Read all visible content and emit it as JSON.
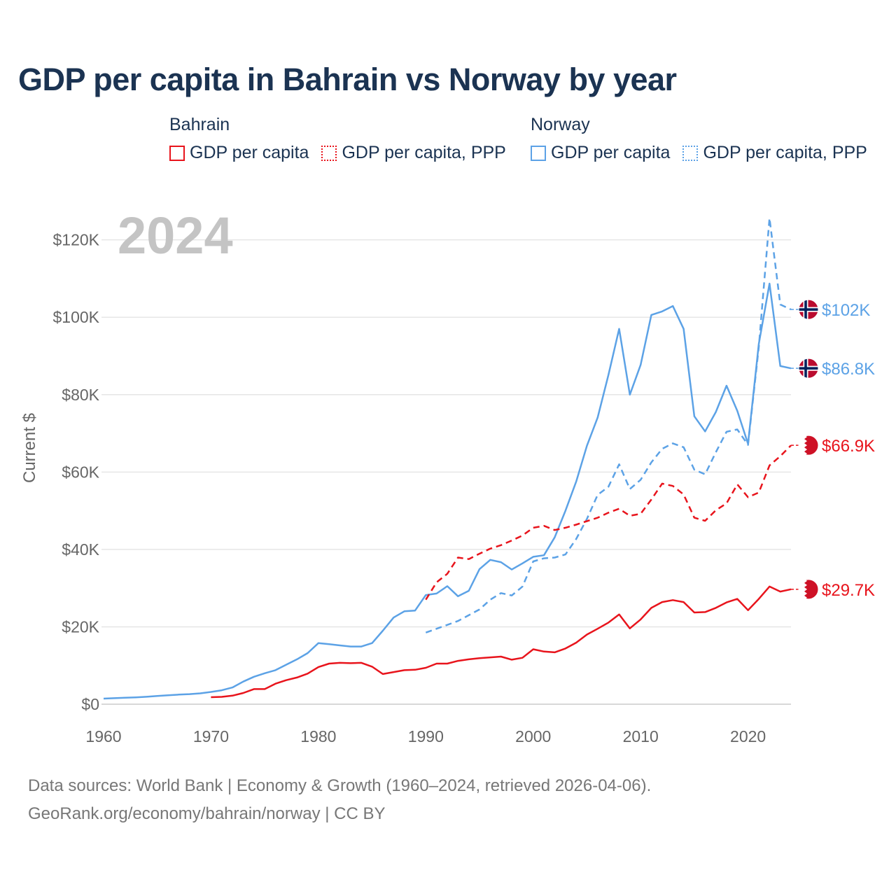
{
  "title": "GDP per capita in Bahrain vs Norway by year",
  "legend": {
    "bahrain": {
      "name": "Bahrain",
      "items": [
        "GDP per capita",
        "GDP per capita, PPP"
      ]
    },
    "norway": {
      "name": "Norway",
      "items": [
        "GDP per capita",
        "GDP per capita, PPP"
      ]
    }
  },
  "colors": {
    "bahrain": "#e8141c",
    "norway": "#5ca2e6",
    "title": "#1b3352",
    "axis": "#666666",
    "year_watermark": "#c4c4c4"
  },
  "footer": {
    "line1": "Data sources: World Bank | Economy & Growth (1960–2024, retrieved 2026-04-06).",
    "line2": "GeoRank.org/economy/bahrain/norway | CC BY"
  },
  "chart_data": {
    "type": "line",
    "year_label": "2024",
    "ylabel": "Current $",
    "xlim": [
      1960,
      2024
    ],
    "ylim": [
      0,
      125000
    ],
    "x_ticks": [
      1960,
      1970,
      1980,
      1990,
      2000,
      2010,
      2020
    ],
    "x_tick_labels": [
      "1960",
      "1970",
      "1980",
      "1990",
      "2000",
      "2010",
      "2020"
    ],
    "y_ticks": [
      0,
      20000,
      40000,
      60000,
      80000,
      100000,
      120000
    ],
    "y_tick_labels": [
      "$0",
      "$20K",
      "$40K",
      "$60K",
      "$80K",
      "$100K",
      "$120K"
    ],
    "grid": true,
    "series": [
      {
        "name": "Norway GDP per capita",
        "country": "norway",
        "dash": "solid",
        "end_label": "$86.8K",
        "flag": "norway-flag-icon",
        "x": [
          1960,
          1961,
          1962,
          1963,
          1964,
          1965,
          1966,
          1967,
          1968,
          1969,
          1970,
          1971,
          1972,
          1973,
          1974,
          1975,
          1976,
          1977,
          1978,
          1979,
          1980,
          1981,
          1982,
          1983,
          1984,
          1985,
          1986,
          1987,
          1988,
          1989,
          1990,
          1991,
          1992,
          1993,
          1994,
          1995,
          1996,
          1997,
          1998,
          1999,
          2000,
          2001,
          2002,
          2003,
          2004,
          2005,
          2006,
          2007,
          2008,
          2009,
          2010,
          2011,
          2012,
          2013,
          2014,
          2015,
          2016,
          2017,
          2018,
          2019,
          2020,
          2021,
          2022,
          2023,
          2024
        ],
        "values": [
          1440,
          1560,
          1670,
          1780,
          1920,
          2110,
          2290,
          2470,
          2600,
          2800,
          3170,
          3600,
          4320,
          5850,
          7100,
          8000,
          8800,
          10200,
          11600,
          13200,
          15800,
          15500,
          15200,
          14900,
          14900,
          15800,
          19000,
          22400,
          24000,
          24200,
          28200,
          28600,
          30500,
          27900,
          29300,
          34900,
          37300,
          36700,
          34800,
          36400,
          38100,
          38500,
          43100,
          50000,
          57500,
          66800,
          74100,
          85100,
          97000,
          80000,
          87700,
          100600,
          101500,
          102900,
          97000,
          74400,
          70500,
          75500,
          82300,
          75800,
          67300,
          93100,
          108700,
          87400,
          86800
        ]
      },
      {
        "name": "Norway GDP per capita, PPP",
        "country": "norway",
        "dash": "dashed",
        "end_label": "$102K",
        "flag": "norway-flag-icon",
        "x": [
          1990,
          1991,
          1992,
          1993,
          1994,
          1995,
          1996,
          1997,
          1998,
          1999,
          2000,
          2001,
          2002,
          2003,
          2004,
          2005,
          2006,
          2007,
          2008,
          2009,
          2010,
          2011,
          2012,
          2013,
          2014,
          2015,
          2016,
          2017,
          2018,
          2019,
          2020,
          2021,
          2022,
          2023,
          2024
        ],
        "values": [
          18500,
          19500,
          20500,
          21500,
          23000,
          24500,
          27000,
          28700,
          28100,
          30400,
          36900,
          37700,
          37900,
          38700,
          42700,
          47900,
          54100,
          56200,
          62000,
          55600,
          58000,
          62500,
          66000,
          67400,
          66400,
          60600,
          59400,
          65100,
          70400,
          71000,
          67000,
          92300,
          125600,
          103300,
          102000
        ]
      },
      {
        "name": "Bahrain GDP per capita",
        "country": "bahrain",
        "dash": "solid",
        "end_label": "$29.7K",
        "flag": "bahrain-flag-icon",
        "x": [
          1970,
          1971,
          1972,
          1973,
          1974,
          1975,
          1976,
          1977,
          1978,
          1979,
          1980,
          1981,
          1982,
          1983,
          1984,
          1985,
          1986,
          1987,
          1988,
          1989,
          1990,
          1991,
          1992,
          1993,
          1994,
          1995,
          1996,
          1997,
          1998,
          1999,
          2000,
          2001,
          2002,
          2003,
          2004,
          2005,
          2006,
          2007,
          2008,
          2009,
          2010,
          2011,
          2012,
          2013,
          2014,
          2015,
          2016,
          2017,
          2018,
          2019,
          2020,
          2021,
          2022,
          2023,
          2024
        ],
        "values": [
          1800,
          1900,
          2200,
          2900,
          3900,
          3900,
          5300,
          6200,
          6900,
          7900,
          9600,
          10500,
          10700,
          10600,
          10700,
          9700,
          7800,
          8300,
          8800,
          8900,
          9400,
          10500,
          10500,
          11200,
          11600,
          11900,
          12100,
          12300,
          11500,
          12000,
          14200,
          13600,
          13400,
          14400,
          15900,
          18000,
          19500,
          21100,
          23200,
          19600,
          21900,
          24900,
          26400,
          26900,
          26400,
          23700,
          23800,
          24900,
          26300,
          27200,
          24300,
          27200,
          30400,
          29100,
          29700
        ]
      },
      {
        "name": "Bahrain GDP per capita, PPP",
        "country": "bahrain",
        "dash": "dashed",
        "end_label": "$66.9K",
        "flag": "bahrain-flag-icon",
        "x": [
          1990,
          1991,
          1992,
          1993,
          1994,
          1995,
          1996,
          1997,
          1998,
          1999,
          2000,
          2001,
          2002,
          2003,
          2004,
          2005,
          2006,
          2007,
          2008,
          2009,
          2010,
          2011,
          2012,
          2013,
          2014,
          2015,
          2016,
          2017,
          2018,
          2019,
          2020,
          2021,
          2022,
          2023,
          2024
        ],
        "values": [
          27000,
          31500,
          33700,
          37900,
          37500,
          38900,
          40200,
          41100,
          42300,
          43600,
          45600,
          46100,
          45000,
          45600,
          46400,
          47300,
          48200,
          49500,
          50500,
          48700,
          49200,
          52900,
          57000,
          56400,
          54200,
          48200,
          47400,
          50100,
          51900,
          56800,
          53500,
          54700,
          61700,
          64100,
          66900
        ]
      }
    ]
  }
}
